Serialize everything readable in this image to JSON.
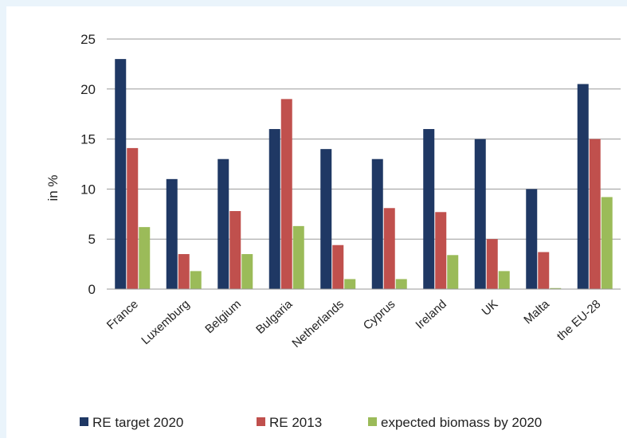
{
  "chart_data": {
    "type": "bar",
    "title": "",
    "xlabel": "",
    "ylabel": "in %",
    "ylim": [
      0,
      25
    ],
    "yticks": [
      0,
      5,
      10,
      15,
      20,
      25
    ],
    "grid": "horizontal",
    "legend_position": "bottom",
    "categories": [
      "France",
      "Luxemburg",
      "Belgium",
      "Bulgaria",
      "Netherlands",
      "Cyprus",
      "Ireland",
      "UK",
      "Malta",
      "the EU-28"
    ],
    "series": [
      {
        "name": "RE target 2020",
        "color": "#1f3864",
        "values": [
          23,
          11,
          13,
          16,
          14,
          13,
          16,
          15,
          10,
          20.5
        ]
      },
      {
        "name": "RE 2013",
        "color": "#c0504d",
        "values": [
          14.1,
          3.5,
          7.8,
          19,
          4.4,
          8.1,
          7.7,
          5,
          3.7,
          15
        ]
      },
      {
        "name": "expected biomass by 2020",
        "color": "#9bbb59",
        "values": [
          6.2,
          1.8,
          3.5,
          6.3,
          1,
          1,
          3.4,
          1.8,
          0.1,
          9.2
        ]
      }
    ]
  }
}
